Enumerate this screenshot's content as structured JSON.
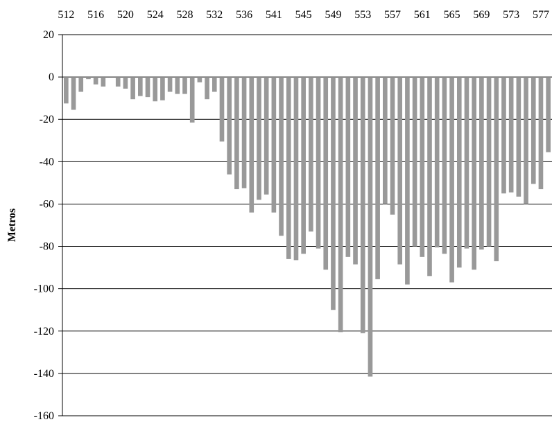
{
  "chart_data": {
    "type": "bar",
    "xlabel": "",
    "ylabel": "Metros",
    "ylim": [
      -160,
      20
    ],
    "ytick_step": 20,
    "x_axis_position": "top",
    "grid": true,
    "bar_color": "#999999",
    "x_tick_labels": [
      "512",
      "516",
      "520",
      "524",
      "528",
      "532",
      "536",
      "541",
      "545",
      "549",
      "553",
      "557",
      "561",
      "565",
      "569",
      "573",
      "577"
    ],
    "x_tick_label_indices": [
      0,
      4,
      8,
      12,
      16,
      20,
      24,
      28,
      32,
      36,
      40,
      44,
      48,
      52,
      56,
      60,
      64
    ],
    "values": [
      -12.5,
      -15.5,
      -7,
      -1,
      -3.5,
      -4.5,
      0,
      -4.5,
      -5.5,
      -10.5,
      -9,
      -9.5,
      -11.5,
      -11,
      -7,
      -8,
      -8,
      -21.5,
      -2.5,
      -10.5,
      -7,
      -30.5,
      -46,
      -53,
      -52.5,
      -64,
      -58,
      -55.5,
      -64,
      -75,
      -86,
      -86.5,
      -83.5,
      -73,
      -81,
      -91,
      -110,
      -120.5,
      -85,
      -88.5,
      -121,
      -141.5,
      -95.5,
      -60,
      -65,
      -88.5,
      -98,
      -80,
      -85,
      -94,
      -80.5,
      -83.5,
      -97,
      -90,
      -81,
      -91,
      -81.5,
      -80,
      -87,
      -55,
      -54.5,
      -56.5,
      -60,
      -50.5,
      -53,
      -35.5
    ]
  }
}
